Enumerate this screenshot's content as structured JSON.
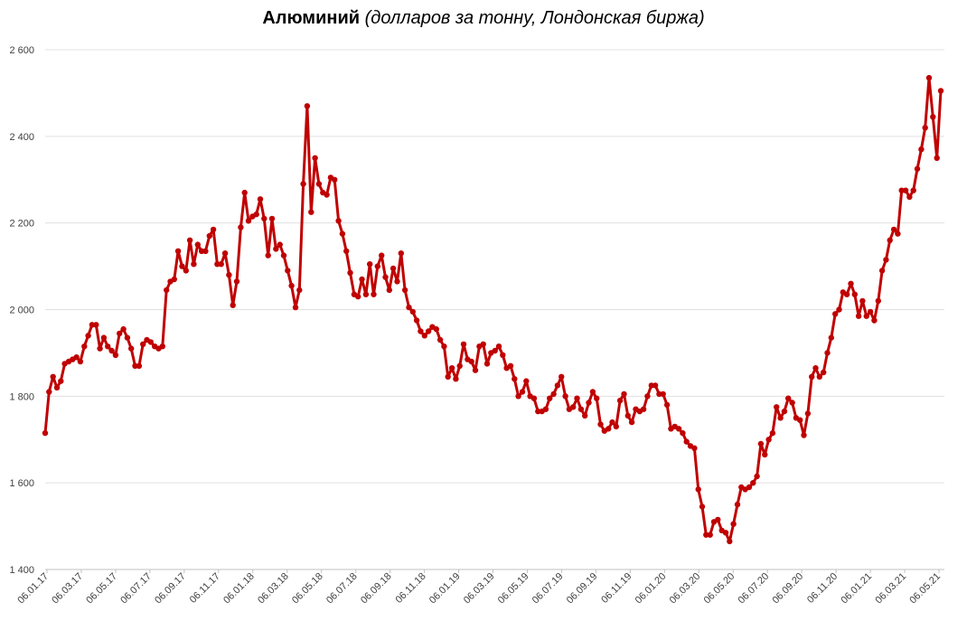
{
  "title_bold": "Алюминий",
  "title_italic": "(долларов за тонну, Лондонская биржа)",
  "chart_data": {
    "type": "line",
    "title": "Алюминий (долларов за тонну, Лондонская биржа)",
    "xlabel": "",
    "ylabel": "",
    "ylim": [
      1400,
      2600
    ],
    "grid": true,
    "line_color": "#c00000",
    "y_ticks": [
      {
        "value": 1400,
        "label": "1 400"
      },
      {
        "value": 1600,
        "label": "1 600"
      },
      {
        "value": 1800,
        "label": "1 800"
      },
      {
        "value": 2000,
        "label": "2 000"
      },
      {
        "value": 2200,
        "label": "2 200"
      },
      {
        "value": 2400,
        "label": "2 400"
      },
      {
        "value": 2600,
        "label": "2 600"
      }
    ],
    "x_tick_labels": [
      "06.01.17",
      "06.03.17",
      "06.05.17",
      "06.07.17",
      "06.09.17",
      "06.11.17",
      "06.01.18",
      "06.03.18",
      "06.05.18",
      "06.07.18",
      "06.09.18",
      "06.11.18",
      "06.01.19",
      "06.03.19",
      "06.05.19",
      "06.07.19",
      "06.09.19",
      "06.11.19",
      "06.01.20",
      "06.03.20",
      "06.05.20",
      "06.07.20",
      "06.09.20",
      "06.11.20",
      "06.01.21",
      "06.03.21",
      "06.05.21"
    ],
    "series": [
      {
        "values": [
          1715,
          1810,
          1845,
          1820,
          1835,
          1875,
          1880,
          1885,
          1890,
          1880,
          1915,
          1940,
          1965,
          1965,
          1910,
          1935,
          1915,
          1905,
          1895,
          1945,
          1955,
          1935,
          1910,
          1870,
          1870,
          1920,
          1930,
          1925,
          1915,
          1910,
          1915,
          2045,
          2065,
          2070,
          2135,
          2100,
          2090,
          2160,
          2105,
          2150,
          2135,
          2135,
          2170,
          2185,
          2105,
          2105,
          2130,
          2080,
          2010,
          2065,
          2190,
          2270,
          2205,
          2215,
          2220,
          2255,
          2210,
          2125,
          2210,
          2140,
          2150,
          2125,
          2090,
          2055,
          2005,
          2045,
          2290,
          2470,
          2225,
          2350,
          2290,
          2270,
          2265,
          2305,
          2300,
          2205,
          2175,
          2135,
          2085,
          2035,
          2030,
          2070,
          2035,
          2105,
          2035,
          2100,
          2125,
          2075,
          2045,
          2095,
          2065,
          2130,
          2045,
          2005,
          1995,
          1975,
          1950,
          1940,
          1950,
          1960,
          1955,
          1930,
          1915,
          1845,
          1865,
          1840,
          1870,
          1920,
          1885,
          1880,
          1860,
          1915,
          1920,
          1875,
          1900,
          1905,
          1915,
          1895,
          1865,
          1870,
          1840,
          1800,
          1810,
          1835,
          1800,
          1795,
          1765,
          1765,
          1770,
          1795,
          1805,
          1825,
          1845,
          1800,
          1770,
          1775,
          1795,
          1770,
          1755,
          1785,
          1810,
          1795,
          1735,
          1720,
          1725,
          1740,
          1730,
          1790,
          1805,
          1755,
          1740,
          1770,
          1765,
          1770,
          1800,
          1825,
          1825,
          1805,
          1805,
          1780,
          1725,
          1730,
          1725,
          1715,
          1695,
          1685,
          1680,
          1585,
          1545,
          1480,
          1480,
          1510,
          1515,
          1490,
          1485,
          1465,
          1505,
          1550,
          1590,
          1585,
          1590,
          1600,
          1615,
          1690,
          1665,
          1700,
          1715,
          1775,
          1750,
          1765,
          1795,
          1785,
          1750,
          1745,
          1710,
          1760,
          1845,
          1865,
          1845,
          1855,
          1900,
          1935,
          1990,
          2000,
          2040,
          2035,
          2060,
          2035,
          1985,
          2020,
          1985,
          1995,
          1975,
          2020,
          2090,
          2115,
          2160,
          2185,
          2175,
          2275,
          2275,
          2260,
          2275,
          2325,
          2370,
          2420,
          2535,
          2445,
          2350,
          2505
        ]
      }
    ]
  }
}
